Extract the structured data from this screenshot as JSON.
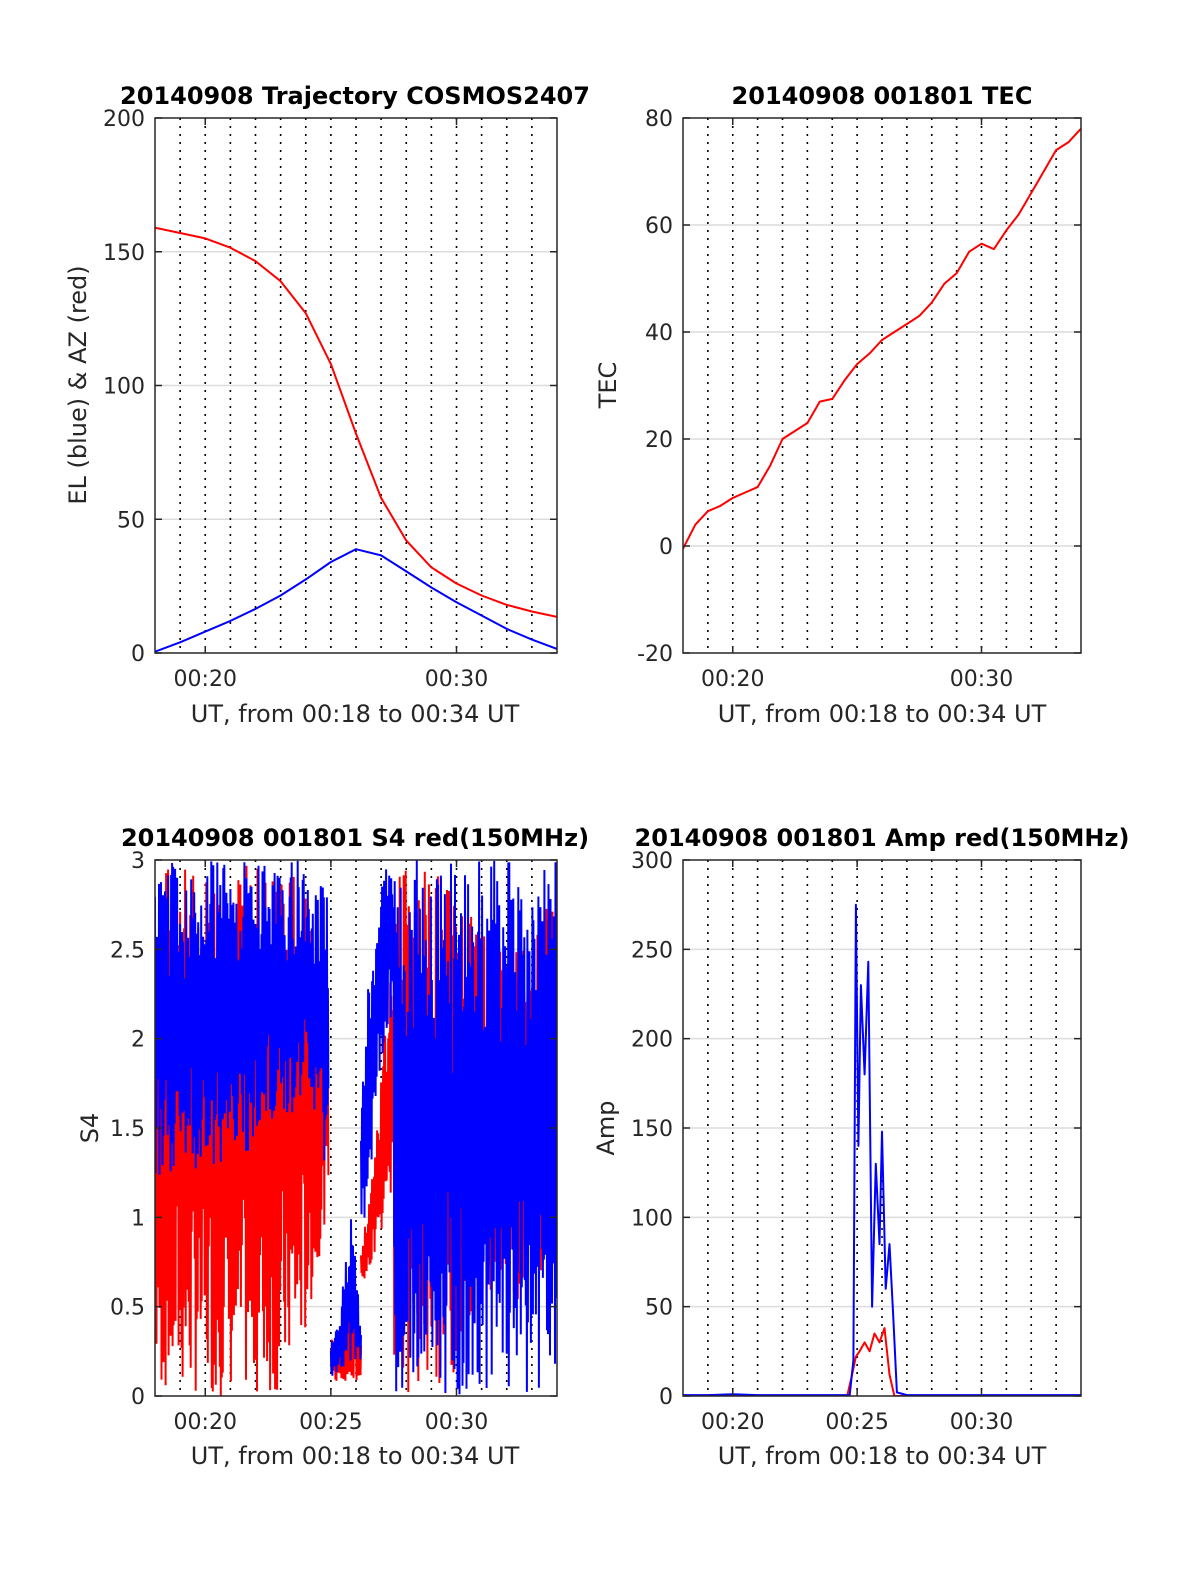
{
  "figure": {
    "background": "#ffffff",
    "grid_color": "#dcdcdc",
    "axis_color": "#262626"
  },
  "panels": {
    "trajectory": {
      "title": "20140908 Trajectory COSMOS2407",
      "xlabel": "UT, from 00:18 to 00:34 UT",
      "ylabel": "EL (blue) & AZ (red)",
      "xticks": [
        "00:20",
        "00:30"
      ],
      "yticks": [
        "0",
        "50",
        "100",
        "150",
        "200"
      ]
    },
    "tec": {
      "title": "20140908 001801 TEC",
      "xlabel": "UT, from 00:18 to 00:34 UT",
      "ylabel": "TEC",
      "xticks": [
        "00:20",
        "00:30"
      ],
      "yticks": [
        "-20",
        "0",
        "20",
        "40",
        "60",
        "80"
      ]
    },
    "s4": {
      "title": "20140908 001801 S4 red(150MHz)",
      "xlabel": "UT, from 00:18 to 00:34 UT",
      "ylabel": "S4",
      "xticks": [
        "00:20",
        "00:25",
        "00:30"
      ],
      "yticks": [
        "0",
        "0.5",
        "1",
        "1.5",
        "2",
        "2.5",
        "3"
      ]
    },
    "amp": {
      "title": "20140908 001801 Amp red(150MHz)",
      "xlabel": "UT, from 00:18 to 00:34 UT",
      "ylabel": "Amp",
      "xticks": [
        "00:20",
        "00:25",
        "00:30"
      ],
      "yticks": [
        "0",
        "50",
        "100",
        "150",
        "200",
        "250",
        "300"
      ]
    }
  },
  "chart_data": [
    {
      "type": "line",
      "title": "20140908 Trajectory COSMOS2407",
      "xlabel": "UT, from 00:18 to 00:34 UT",
      "ylabel": "EL (blue) & AZ (red)",
      "x_unit": "minutes after 00:00 UT",
      "xlim": [
        18,
        34
      ],
      "ylim": [
        0,
        200
      ],
      "grid": true,
      "x": [
        18,
        19,
        20,
        21,
        22,
        23,
        24,
        25,
        26,
        27,
        28,
        29,
        30,
        31,
        32,
        33,
        34
      ],
      "series": [
        {
          "color": "#ff0000",
          "values": [
            159,
            157,
            155,
            151.5,
            146.5,
            139,
            127,
            108,
            82,
            58,
            42,
            32,
            26,
            21.5,
            18,
            15.5,
            13.5
          ]
        },
        {
          "color": "#0000ff",
          "values": [
            0.5,
            4,
            8,
            12,
            16.5,
            21.5,
            27.5,
            34,
            38.8,
            36.5,
            30.5,
            24.5,
            19,
            14,
            9,
            5,
            1.5
          ]
        }
      ]
    },
    {
      "type": "line",
      "title": "20140908 001801 TEC",
      "xlabel": "UT, from 00:18 to 00:34 UT",
      "ylabel": "TEC",
      "x_unit": "minutes after 00:00 UT",
      "xlim": [
        18,
        34
      ],
      "ylim": [
        -20,
        80
      ],
      "grid": true,
      "x": [
        18,
        18.5,
        19,
        19.5,
        20,
        20.5,
        21,
        21.5,
        22,
        22.5,
        23,
        23.5,
        24,
        24.5,
        25,
        25.5,
        26,
        26.5,
        27,
        27.5,
        28,
        28.5,
        29,
        29.5,
        30,
        30.5,
        31,
        31.5,
        32,
        32.5,
        33,
        33.5,
        34
      ],
      "series": [
        {
          "color": "#ff0000",
          "values": [
            -0.5,
            4,
            6.5,
            7.5,
            9,
            10,
            11,
            15,
            20,
            21.5,
            23,
            27,
            27.5,
            31,
            34,
            36,
            38.5,
            40,
            41.5,
            43,
            45.5,
            49,
            51,
            55,
            56.5,
            55.5,
            59,
            62,
            66,
            70,
            74,
            75.5,
            78
          ]
        }
      ]
    },
    {
      "type": "line",
      "title": "20140908 001801 S4 red(150MHz)",
      "xlabel": "UT, from 00:18 to 00:34 UT",
      "ylabel": "S4",
      "x_unit": "minutes after 00:00 UT",
      "xlim": [
        18,
        34
      ],
      "ylim": [
        0,
        3
      ],
      "grid": true,
      "series": [
        {
          "color": "#ff0000",
          "segments": [
            {
              "x": [
                18,
                19,
                20,
                21,
                22,
                23,
                24,
                24.9
              ],
              "low": [
                0,
                0,
                0,
                0,
                0,
                0,
                0.3,
                1.1
              ],
              "high": [
                3,
                3,
                3,
                3,
                3,
                3,
                2.9,
                2.2
              ]
            },
            {
              "x": [
                25,
                25.4,
                25.8,
                26.2
              ],
              "low": [
                0.08,
                0.08,
                0.08,
                0.08
              ],
              "high": [
                0.35,
                0.4,
                0.5,
                0.3
              ]
            },
            {
              "x": [
                26.2,
                26.6,
                27,
                27.5
              ],
              "low": [
                0.6,
                0.7,
                0.9,
                1.1
              ],
              "high": [
                0.8,
                1.2,
                1.8,
                2.6
              ]
            },
            {
              "x": [
                27.5,
                28.5,
                29.5,
                30.5,
                31.5,
                32.5,
                33.5,
                34
              ],
              "low": [
                0,
                0,
                0,
                0.3,
                0.5,
                0.5,
                0.7,
                0.9
              ],
              "high": [
                3,
                3,
                3,
                2.8,
                2.5,
                2.5,
                2.8,
                3
              ]
            }
          ]
        },
        {
          "color": "#0000ff",
          "segments": [
            {
              "x": [
                18,
                19,
                20,
                21,
                22,
                23,
                24,
                24.9
              ],
              "low": [
                1.2,
                1.2,
                1.3,
                1.3,
                1.4,
                1.5,
                1.6,
                1.2
              ],
              "high": [
                3,
                3,
                3,
                3,
                3,
                3,
                3,
                2.8
              ]
            },
            {
              "x": [
                25,
                25.4,
                25.8,
                26.2
              ],
              "low": [
                0.1,
                0.15,
                0.2,
                0.18
              ],
              "high": [
                0.3,
                0.5,
                1.1,
                0.35
              ]
            },
            {
              "x": [
                26.2,
                26.6,
                27,
                27.5
              ],
              "low": [
                0.8,
                1.2,
                1.8,
                2.2
              ],
              "high": [
                1.8,
                2.5,
                3,
                3
              ]
            },
            {
              "x": [
                27.5,
                28.5,
                29.5,
                30.5,
                31.5,
                32.5,
                33.5,
                34
              ],
              "low": [
                0,
                0,
                0,
                0,
                0,
                0,
                0,
                0
              ],
              "high": [
                3,
                3,
                3,
                3,
                3,
                3,
                3,
                3
              ]
            }
          ]
        }
      ]
    },
    {
      "type": "line",
      "title": "20140908 001801 Amp red(150MHz)",
      "xlabel": "UT, from 00:18 to 00:34 UT",
      "ylabel": "Amp",
      "x_unit": "minutes after 00:00 UT",
      "xlim": [
        18,
        34
      ],
      "ylim": [
        0,
        300
      ],
      "grid": true,
      "series": [
        {
          "color": "#ff0000",
          "x": [
            18,
            24.6,
            24.8,
            24.95,
            25.1,
            25.3,
            25.5,
            25.7,
            25.9,
            26.1,
            26.3,
            26.5,
            34
          ],
          "values": [
            0,
            0,
            12,
            22,
            25,
            30,
            25,
            35,
            30,
            38,
            12,
            0,
            0
          ]
        },
        {
          "color": "#0000ff",
          "x": [
            18,
            19,
            20,
            21,
            22,
            23,
            24,
            24.7,
            24.85,
            24.95,
            25.05,
            25.15,
            25.3,
            25.45,
            25.6,
            25.75,
            25.9,
            26.0,
            26.15,
            26.3,
            26.45,
            26.6,
            27,
            28,
            29,
            30,
            31,
            32,
            33,
            34
          ],
          "values": [
            0.5,
            0.5,
            1,
            0.5,
            0.5,
            0.5,
            0.5,
            0.5,
            20,
            275,
            140,
            230,
            180,
            243,
            50,
            130,
            85,
            148,
            60,
            85,
            45,
            2,
            0.5,
            0.5,
            0.5,
            0.5,
            0.5,
            0.5,
            0.5,
            0.5
          ]
        }
      ]
    }
  ]
}
